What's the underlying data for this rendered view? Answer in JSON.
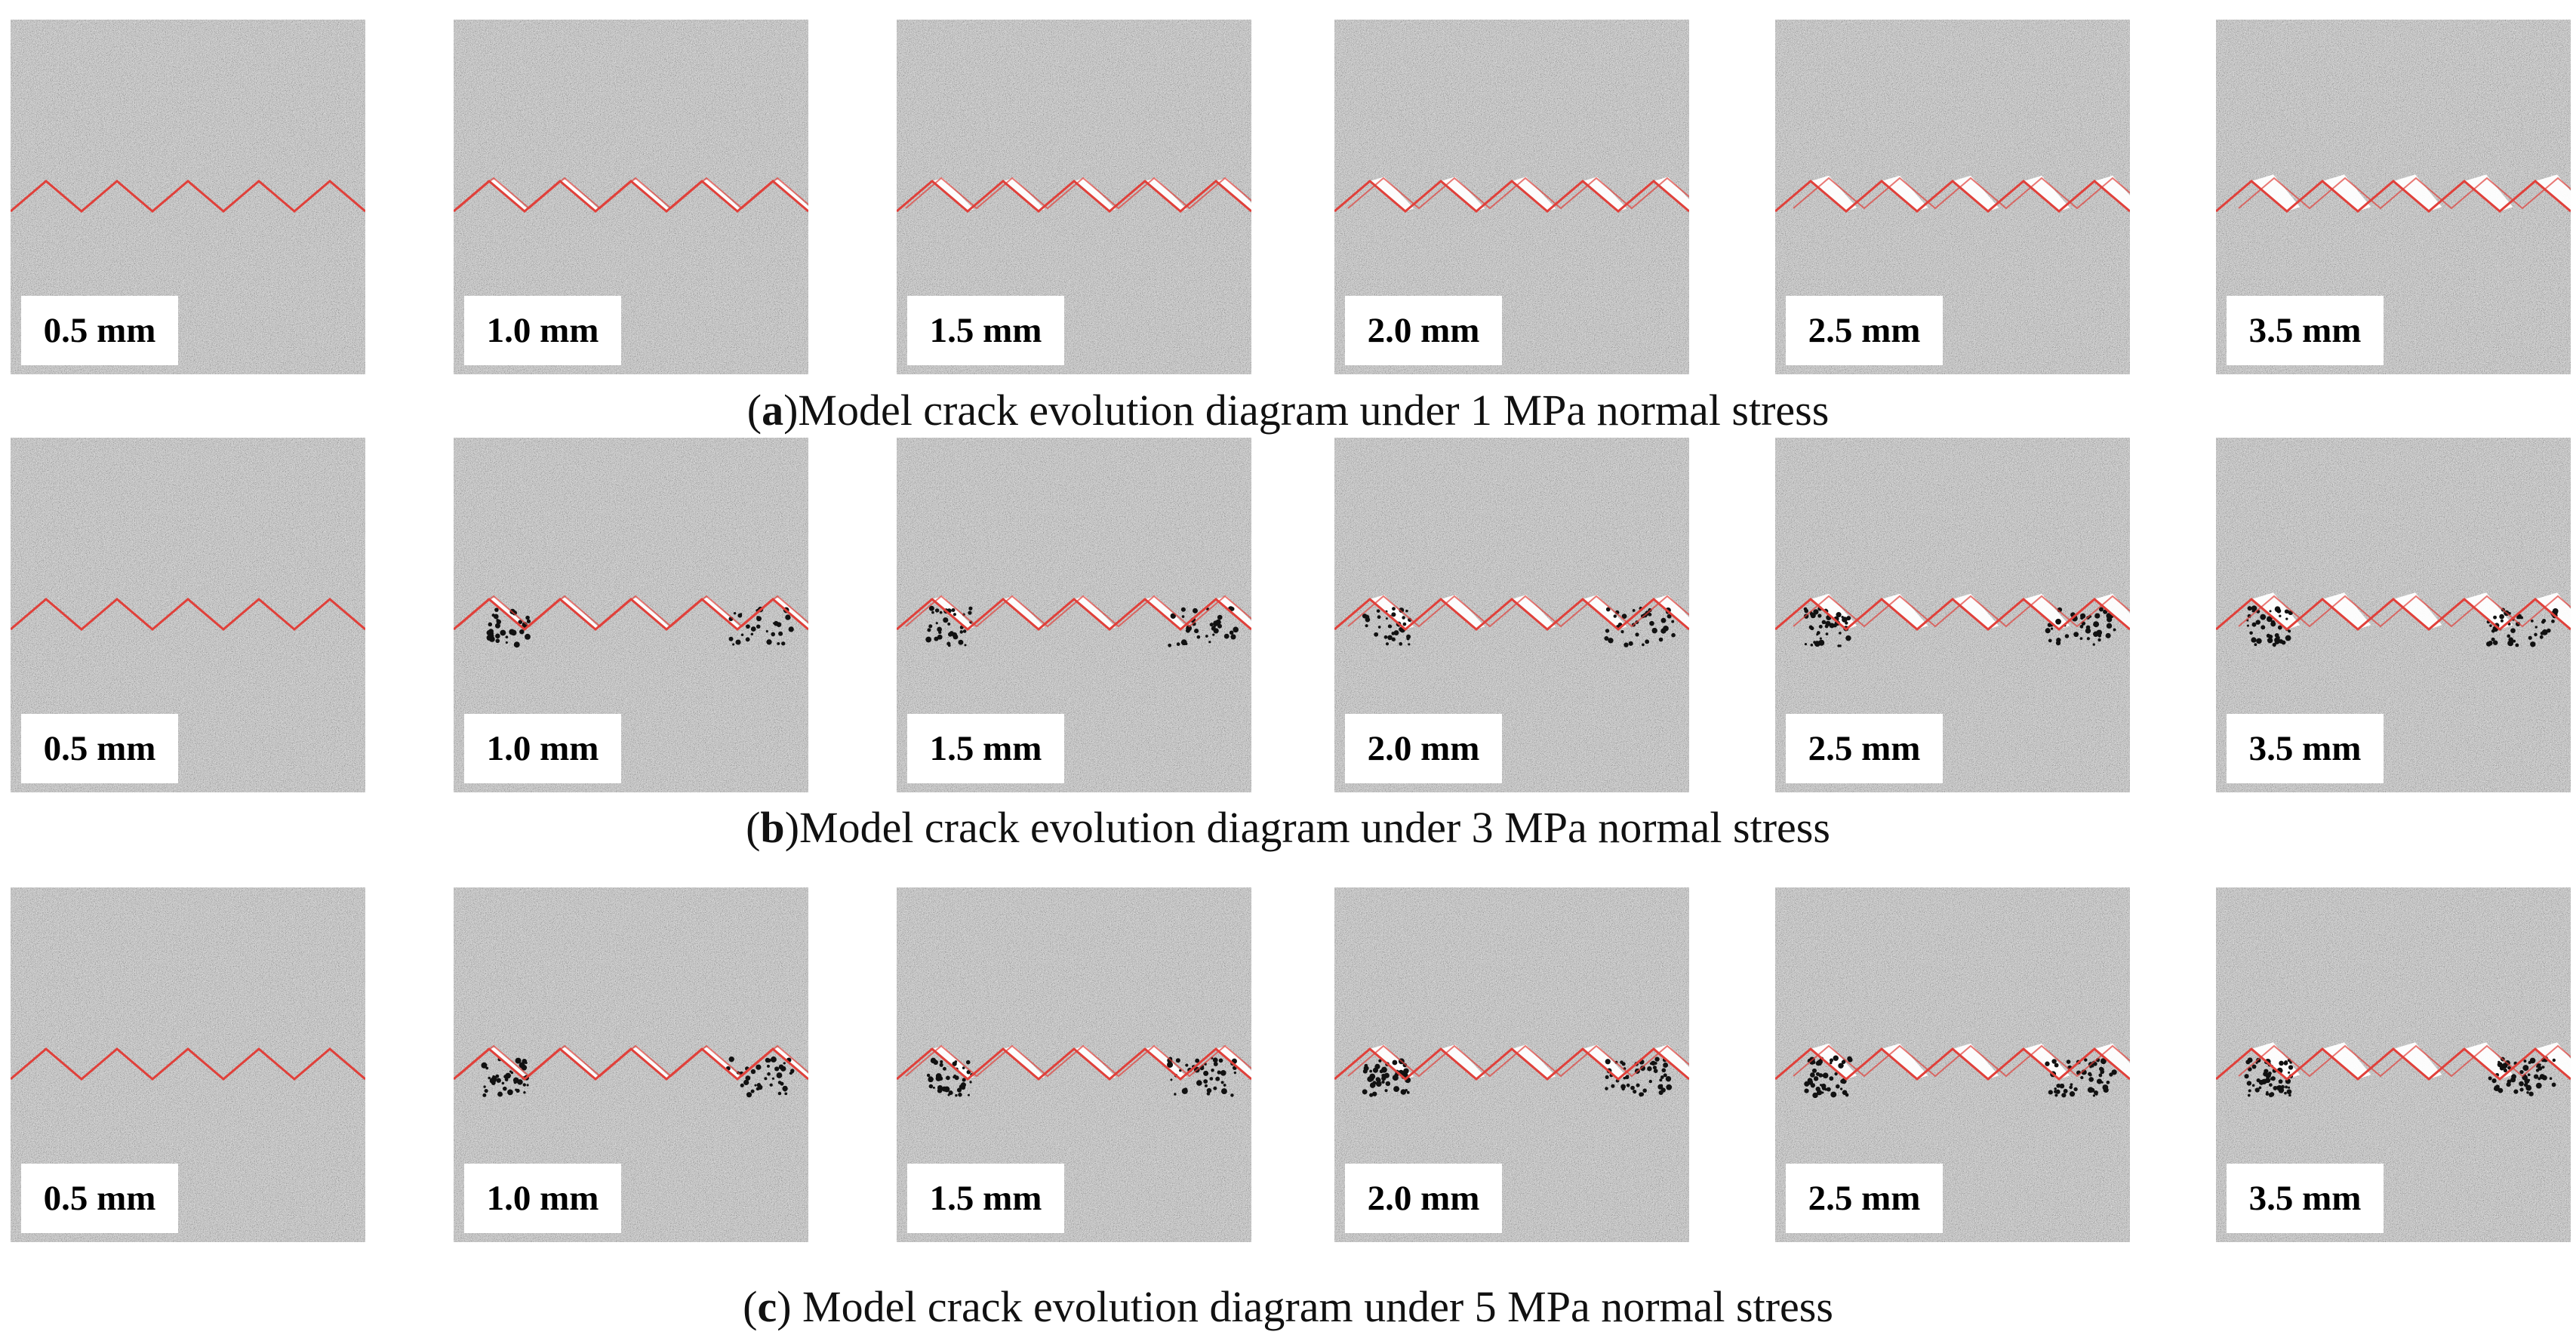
{
  "figure": {
    "rows": [
      {
        "letter": "a",
        "caption_open": "(",
        "caption_text": ")Model crack evolution diagram under 1 MPa normal stress",
        "panels": [
          "0.5 mm",
          "1.0 mm",
          "1.5 mm",
          "2.0 mm",
          "2.5 mm",
          "3.5 mm"
        ]
      },
      {
        "letter": "b",
        "caption_open": "(",
        "caption_text": ")Model crack evolution diagram under 3 MPa normal stress",
        "panels": [
          "0.5 mm",
          "1.0 mm",
          "1.5 mm",
          "2.0 mm",
          "2.5 mm",
          "3.5 mm"
        ]
      },
      {
        "letter": "c",
        "caption_open": "(",
        "caption_text": ") Model crack evolution diagram under 5 MPa normal stress",
        "panels": [
          "0.5 mm",
          "1.0 mm",
          "1.5 mm",
          "2.0 mm",
          "2.5 mm",
          "3.5 mm"
        ]
      }
    ],
    "colors": {
      "joint_line": "#e0403a",
      "particle_mid": "#8a8a8a",
      "label_bg": "#ffffff"
    }
  }
}
